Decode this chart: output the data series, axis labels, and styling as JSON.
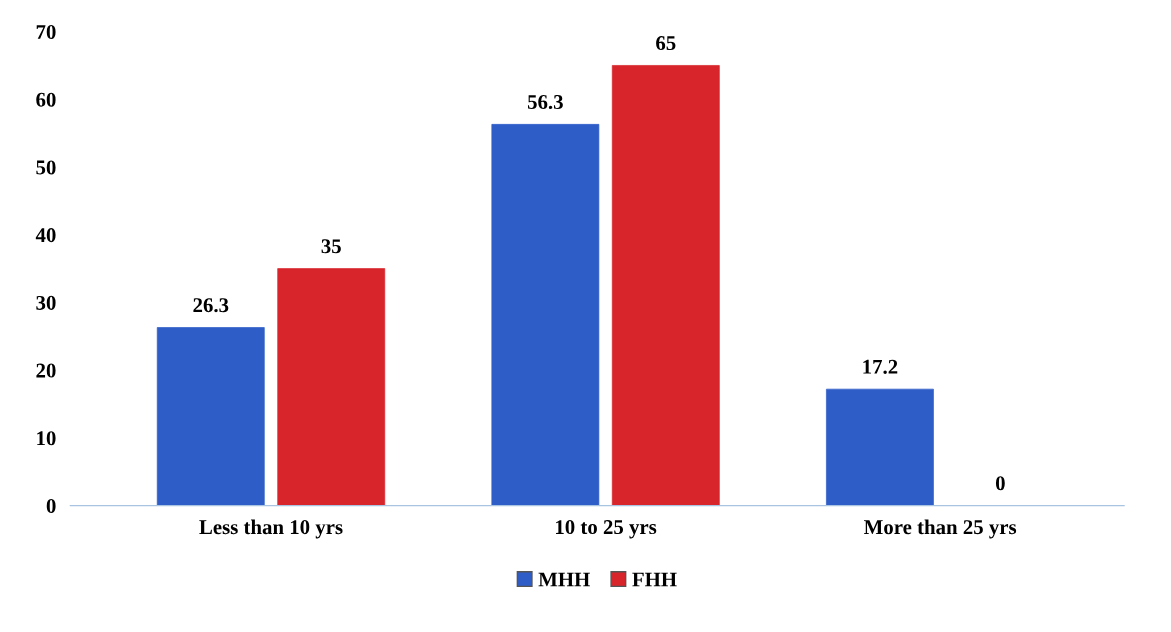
{
  "chart_data": {
    "type": "bar",
    "categories": [
      "Less than 10 yrs",
      "10 to 25 yrs",
      "More than 25 yrs"
    ],
    "series": [
      {
        "name": "MHH",
        "color": "#2f5dc8",
        "values": [
          26.3,
          56.3,
          17.2
        ]
      },
      {
        "name": "FHH",
        "color": "#d8252b",
        "values": [
          35,
          65,
          0
        ]
      }
    ],
    "ylim": [
      0,
      70
    ],
    "yticks": [
      0,
      10,
      20,
      30,
      40,
      50,
      60,
      70
    ],
    "grid": false,
    "legend": "bottom",
    "data_labels": true
  }
}
